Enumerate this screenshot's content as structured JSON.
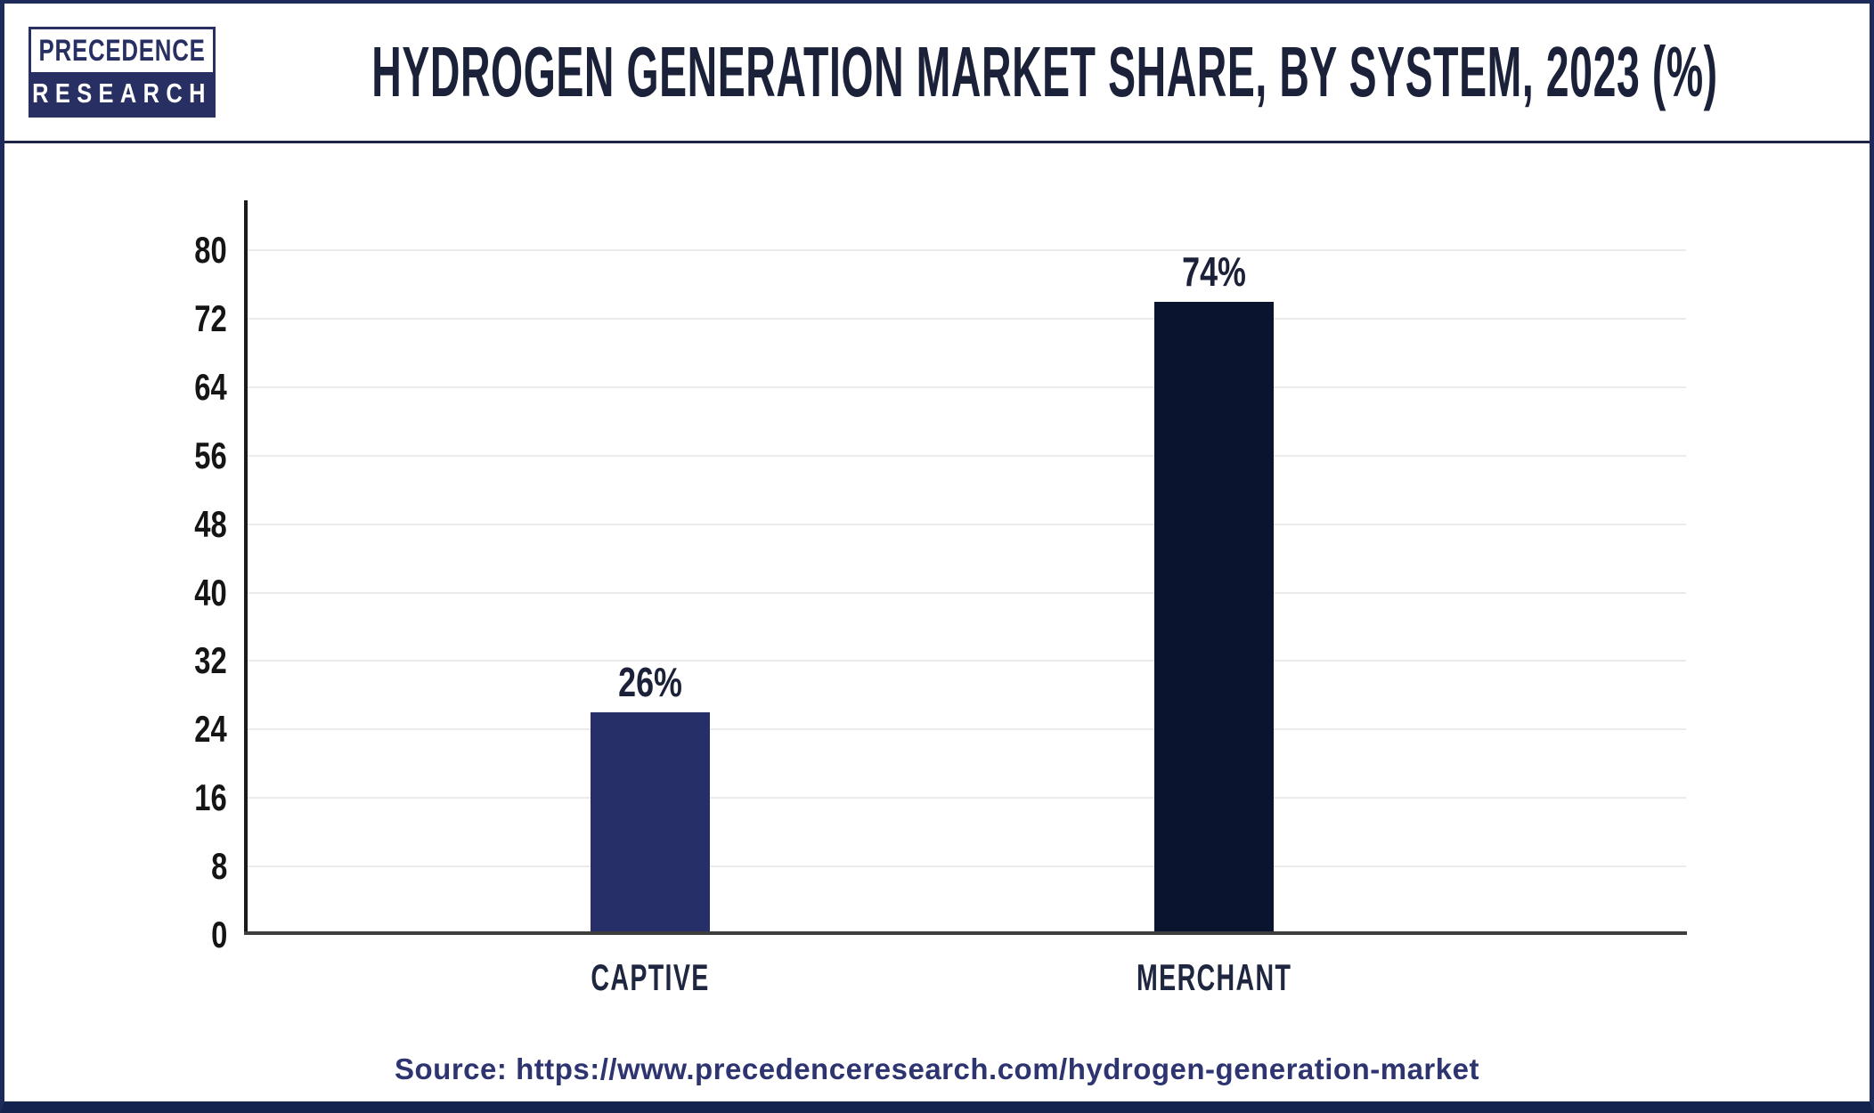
{
  "header": {
    "logo": {
      "line1": "PRECEDENCE",
      "line2": "RESEARCH"
    },
    "title": "HYDROGEN GENERATION MARKET SHARE, BY SYSTEM, 2023 (%)"
  },
  "chart_data": {
    "type": "bar",
    "title": "HYDROGEN GENERATION MARKET SHARE, BY SYSTEM, 2023 (%)",
    "categories": [
      "CAPTIVE",
      "MERCHANT"
    ],
    "values": [
      26,
      74
    ],
    "value_labels": [
      "26%",
      "74%"
    ],
    "bar_colors": [
      "#262f67",
      "#0b142e"
    ],
    "ylim": [
      0,
      80
    ],
    "yticks": [
      0,
      8,
      16,
      24,
      32,
      40,
      48,
      56,
      64,
      72,
      80
    ],
    "grid": "horizontal",
    "legend": "none",
    "xlabel": "",
    "ylabel": ""
  },
  "footer": {
    "source_label": "Source:",
    "source_url": "https://www.precedenceresearch.com/hydrogen-generation-market"
  },
  "colors": {
    "title_text": "#1a2138",
    "captive_bar": "#262f67",
    "merchant_bar": "#0b142e",
    "axis_line": "#1a1a1a",
    "baseline": "#3d3d3d",
    "gridline": "#ebebeb",
    "tick_text": "#151515",
    "source_text": "#2d3470",
    "frame_border": "#1c2b5a",
    "logo_navy": "#272f63"
  }
}
